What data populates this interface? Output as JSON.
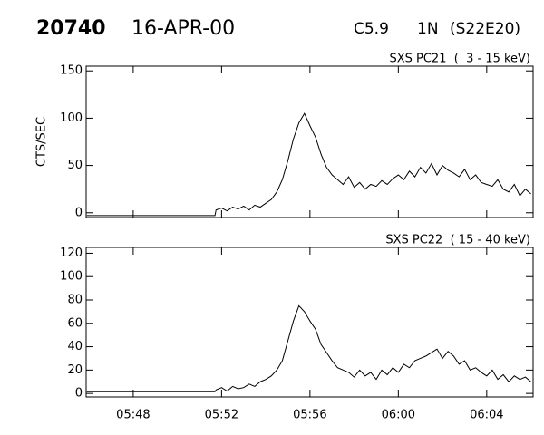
{
  "header": {
    "id": "20740",
    "date": "16-APR-00",
    "class": "C5.9",
    "optical": "1N",
    "location": "(S22E20)"
  },
  "chart_data": [
    {
      "type": "line",
      "title": "SXS PC21  (  3 - 15 keV)",
      "y_label": "CTS/SEC",
      "x": [
        45.9,
        51.7,
        51.75,
        52,
        52.25,
        52.5,
        52.75,
        53,
        53.25,
        53.5,
        53.75,
        54,
        54.25,
        54.5,
        54.75,
        55,
        55.25,
        55.5,
        55.75,
        56,
        56.25,
        56.5,
        56.75,
        57,
        57.25,
        57.5,
        57.75,
        58,
        58.25,
        58.5,
        58.75,
        59,
        59.25,
        59.5,
        59.75,
        60,
        60.25,
        60.5,
        60.75,
        61,
        61.25,
        61.5,
        61.75,
        62,
        62.25,
        62.5,
        62.75,
        63,
        63.25,
        63.5,
        63.75,
        64,
        64.25,
        64.5,
        64.75,
        65,
        65.25,
        65.5,
        65.75,
        66
      ],
      "series": [
        {
          "name": "SXS PC21",
          "color": "#000000",
          "values": [
            -3,
            -3,
            3,
            5,
            2,
            6,
            4,
            7,
            3,
            8,
            6,
            10,
            14,
            22,
            35,
            55,
            78,
            95,
            105,
            92,
            80,
            62,
            48,
            40,
            35,
            30,
            38,
            27,
            32,
            25,
            30,
            28,
            34,
            30,
            36,
            40,
            35,
            44,
            38,
            48,
            42,
            52,
            40,
            50,
            45,
            42,
            38,
            46,
            35,
            40,
            32,
            30,
            28,
            35,
            25,
            22,
            30,
            18,
            25,
            20
          ]
        }
      ],
      "xlim": [
        45.87,
        66.1
      ],
      "ylim": [
        -5,
        155
      ],
      "yticks": [
        0,
        50,
        100,
        150
      ]
    },
    {
      "type": "line",
      "title": "SXS PC22  ( 15 - 40 keV)",
      "x": [
        45.9,
        51.7,
        51.75,
        52,
        52.25,
        52.5,
        52.75,
        53,
        53.25,
        53.5,
        53.75,
        54,
        54.25,
        54.5,
        54.75,
        55,
        55.25,
        55.5,
        55.75,
        56,
        56.25,
        56.5,
        56.75,
        57,
        57.25,
        57.5,
        57.75,
        58,
        58.25,
        58.5,
        58.75,
        59,
        59.25,
        59.5,
        59.75,
        60,
        60.25,
        60.5,
        60.75,
        61,
        61.25,
        61.5,
        61.75,
        62,
        62.25,
        62.5,
        62.75,
        63,
        63.25,
        63.5,
        63.75,
        64,
        64.25,
        64.5,
        64.75,
        65,
        65.25,
        65.5,
        65.75,
        66
      ],
      "series": [
        {
          "name": "SXS PC22",
          "color": "#000000",
          "values": [
            1.5,
            1.5,
            3,
            5,
            2,
            6,
            4,
            5,
            8,
            6,
            10,
            12,
            15,
            20,
            28,
            45,
            62,
            75,
            70,
            62,
            55,
            42,
            35,
            28,
            22,
            20,
            18,
            14,
            20,
            15,
            18,
            12,
            20,
            16,
            22,
            18,
            25,
            22,
            28,
            30,
            32,
            35,
            38,
            30,
            36,
            32,
            25,
            28,
            20,
            22,
            18,
            15,
            20,
            12,
            16,
            10,
            15,
            12,
            14,
            10
          ]
        }
      ],
      "xlim": [
        45.87,
        66.1
      ],
      "ylim": [
        -3,
        125
      ],
      "yticks": [
        0,
        20,
        40,
        60,
        80,
        100,
        120
      ],
      "xticks": [
        {
          "value": 48,
          "label": "05:48"
        },
        {
          "value": 52,
          "label": "05:52"
        },
        {
          "value": 56,
          "label": "05:56"
        },
        {
          "value": 60,
          "label": "06:00"
        },
        {
          "value": 64,
          "label": "06:04"
        }
      ]
    }
  ]
}
